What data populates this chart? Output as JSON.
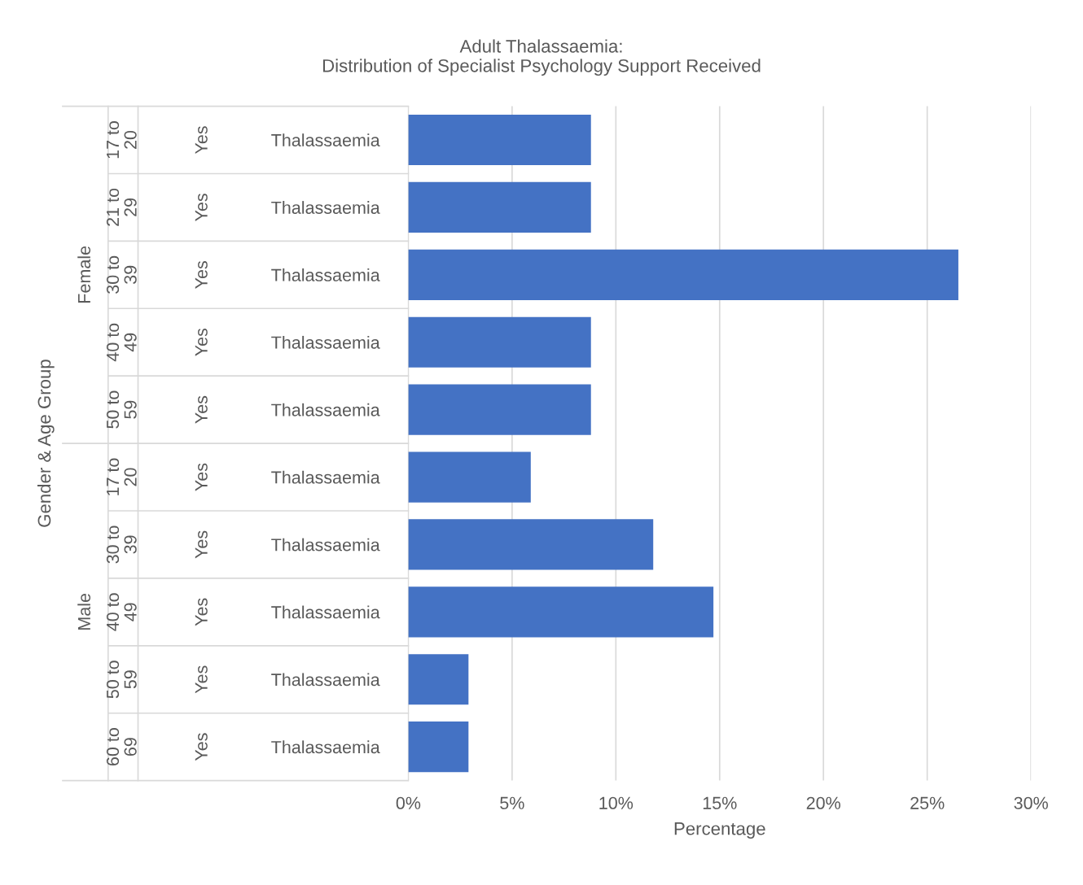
{
  "chart_data": {
    "type": "bar",
    "orientation": "horizontal",
    "title": "Adult Thalassaemia:\nDistribution of Specialist Psychology Support Received",
    "xlabel": "Percentage",
    "categories": [
      "Thalassaemia",
      "Thalassaemia",
      "Thalassaemia",
      "Thalassaemia",
      "Thalassaemia",
      "Thalassaemia",
      "Thalassaemia",
      "Thalassaemia",
      "Thalassaemia",
      "Thalassaemia"
    ],
    "values": [
      8.8,
      8.8,
      26.5,
      8.8,
      8.8,
      5.9,
      11.8,
      14.7,
      2.9,
      2.9
    ],
    "color": "#4472c4",
    "annotations": [
      "Female",
      "Male",
      "17 to 20",
      "21 to 29",
      "30 to 39",
      "40 to 49",
      "50 to 59",
      "17 to 20",
      "30 to 39",
      "40 to 49",
      "50 to 59",
      "60 to 69",
      "Yes",
      "Yes",
      "Yes",
      "Yes",
      "Yes",
      "Yes",
      "Yes",
      "Yes",
      "Yes",
      "Yes",
      "Gender & Age Group"
    ],
    "xlim": [
      0,
      30
    ],
    "xticks": [
      {
        "value": 0,
        "label": "0%"
      },
      {
        "value": 5,
        "label": "5%"
      },
      {
        "value": 10,
        "label": "10%"
      },
      {
        "value": 15,
        "label": "15%"
      },
      {
        "value": 20,
        "label": "20%"
      },
      {
        "value": 25,
        "label": "25%"
      },
      {
        "value": 30,
        "label": "30%"
      }
    ],
    "grid": "x",
    "legend": false
  }
}
